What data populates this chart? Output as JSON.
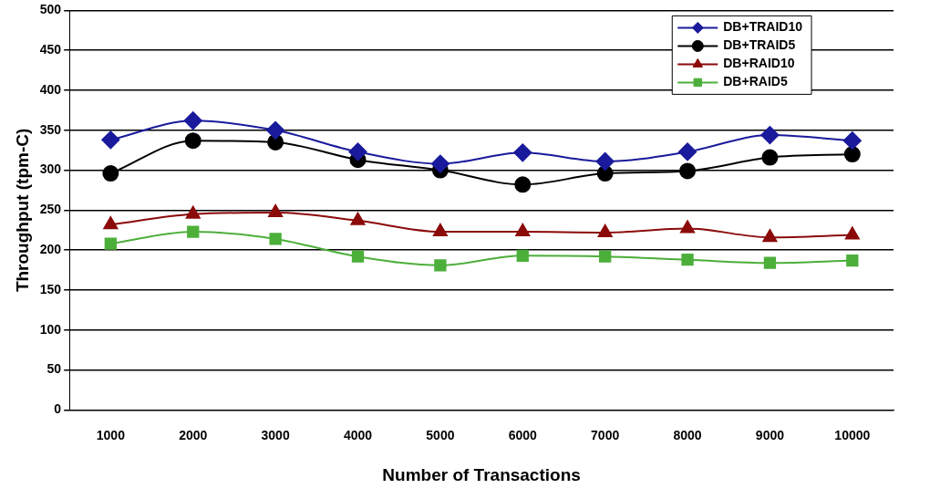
{
  "chart_data": {
    "type": "line",
    "xlabel": "Number of Transactions",
    "ylabel": "Throughput (tpm-C)",
    "categories": [
      "1000",
      "2000",
      "3000",
      "4000",
      "5000",
      "6000",
      "7000",
      "8000",
      "9000",
      "10000"
    ],
    "ylim": [
      0,
      500
    ],
    "yticks": [
      0,
      50,
      100,
      150,
      200,
      250,
      300,
      350,
      400,
      450,
      500
    ],
    "grid": "y",
    "legend": "top right",
    "line_style": "solid",
    "series": [
      {
        "name": "DB+TRAID10",
        "color": "#1a1a9c",
        "marker": "diamond",
        "values": [
          338,
          362,
          350,
          323,
          308,
          322,
          311,
          323,
          344,
          337
        ]
      },
      {
        "name": "DB+TRAID5",
        "color": "#000000",
        "marker": "circle",
        "values": [
          296,
          337,
          335,
          313,
          300,
          282,
          296,
          299,
          316,
          320
        ]
      },
      {
        "name": "DB+RAID10",
        "color": "#8b0a0a",
        "marker": "triangle",
        "values": [
          232,
          245,
          247,
          237,
          223,
          223,
          222,
          227,
          216,
          219
        ]
      },
      {
        "name": "DB+RAID5",
        "color": "#4caf3a",
        "marker": "square",
        "values": [
          208,
          223,
          214,
          192,
          181,
          193,
          192,
          188,
          184,
          187
        ]
      }
    ]
  }
}
